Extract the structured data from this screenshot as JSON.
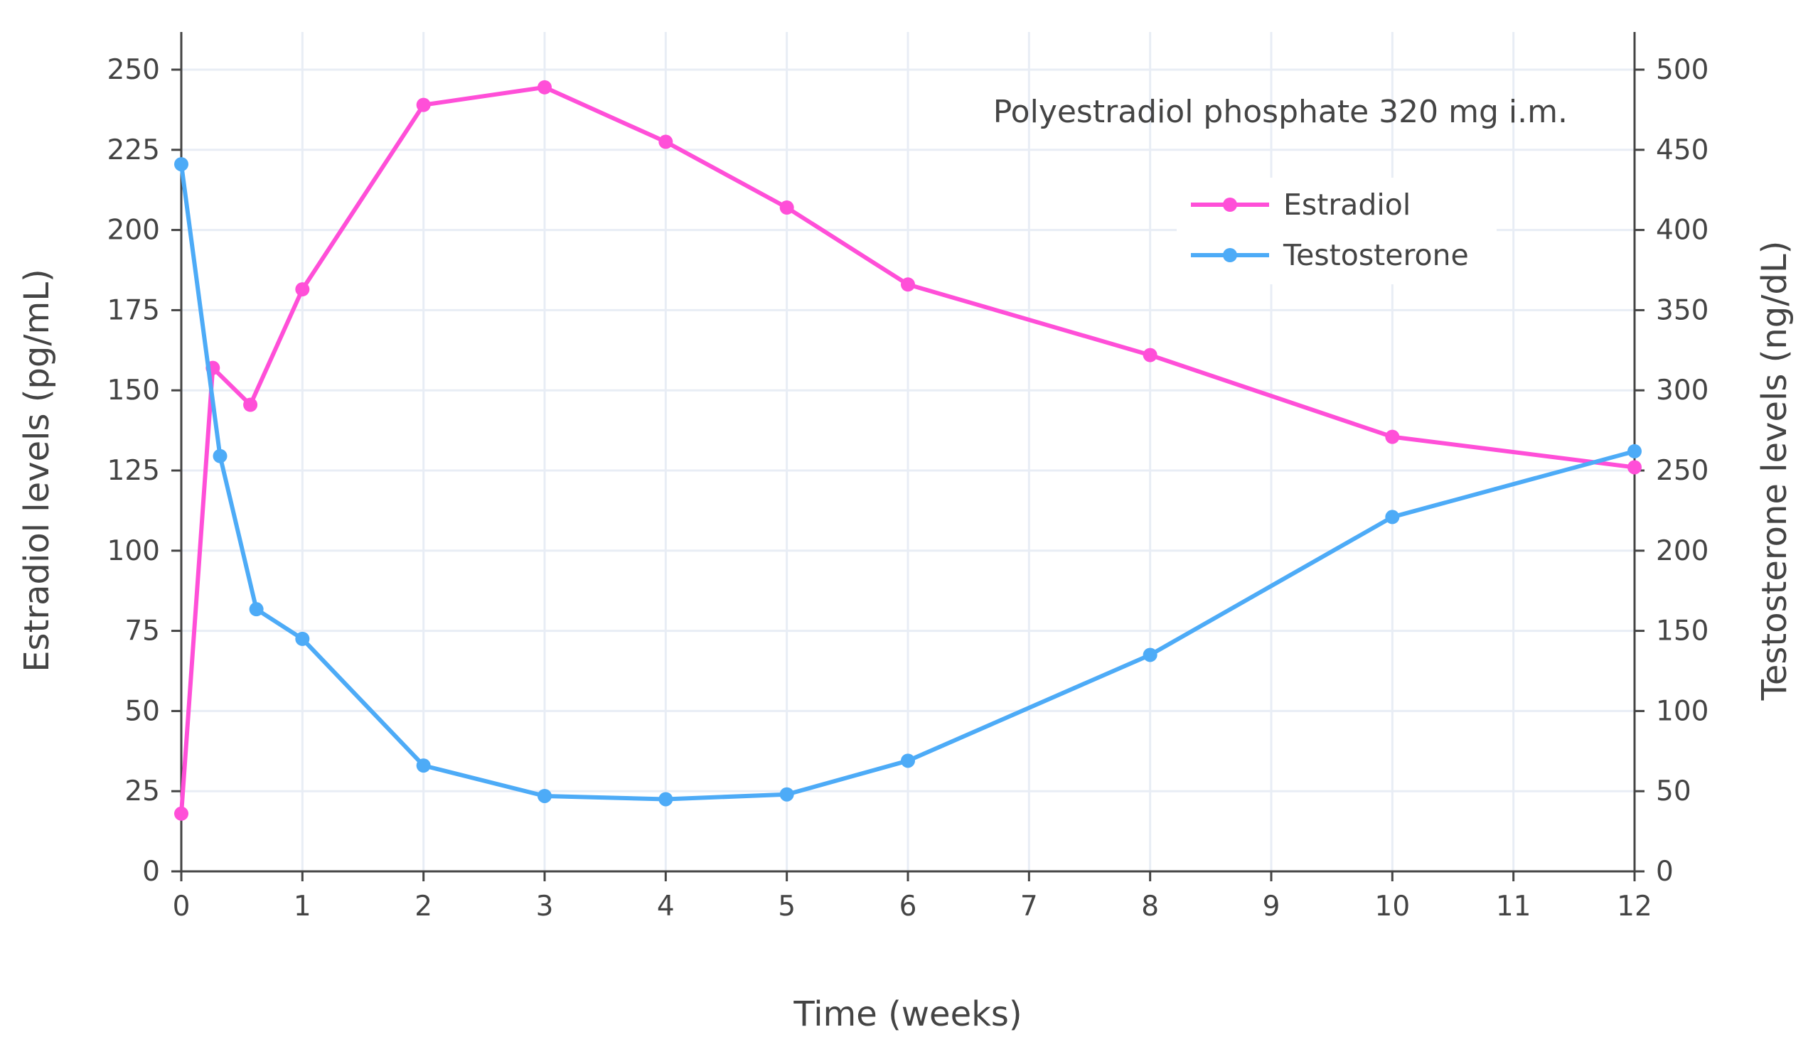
{
  "chart_data": {
    "type": "line",
    "annotation": "Polyestradiol phosphate 320 mg i.m.",
    "xlabel": "Time (weeks)",
    "ylabel": "Estradiol levels (pg/mL)",
    "y2label": "Testosterone levels (ng/dL)",
    "xlim": [
      0,
      12
    ],
    "ylim": [
      0,
      250
    ],
    "y2lim": [
      0,
      500
    ],
    "xticks": [
      "0",
      "1",
      "2",
      "3",
      "4",
      "5",
      "6",
      "7",
      "8",
      "9",
      "10",
      "11",
      "12"
    ],
    "yticks": [
      "0",
      "25",
      "50",
      "75",
      "100",
      "125",
      "150",
      "175",
      "200",
      "225",
      "250"
    ],
    "y2ticks": [
      "0",
      "50",
      "100",
      "150",
      "200",
      "250",
      "300",
      "350",
      "400",
      "450",
      "500"
    ],
    "grid": true,
    "legend_position": "top-right",
    "series": [
      {
        "name": "Estradiol",
        "axis": "left",
        "color": "#ff4fd8",
        "x": [
          0,
          0.26,
          0.57,
          1,
          2,
          3,
          4,
          5,
          6,
          8,
          10,
          12
        ],
        "y": [
          18,
          157,
          145.5,
          181.5,
          239,
          244.5,
          227.5,
          207,
          183,
          161,
          135.5,
          126
        ]
      },
      {
        "name": "Testosterone",
        "axis": "right",
        "color": "#4dabf7",
        "x": [
          0,
          0.32,
          0.62,
          1,
          2,
          3,
          4,
          5,
          6,
          8,
          10,
          12
        ],
        "y": [
          441,
          259,
          163.5,
          145,
          66,
          47,
          45,
          48,
          69,
          135,
          221,
          262
        ]
      }
    ]
  }
}
